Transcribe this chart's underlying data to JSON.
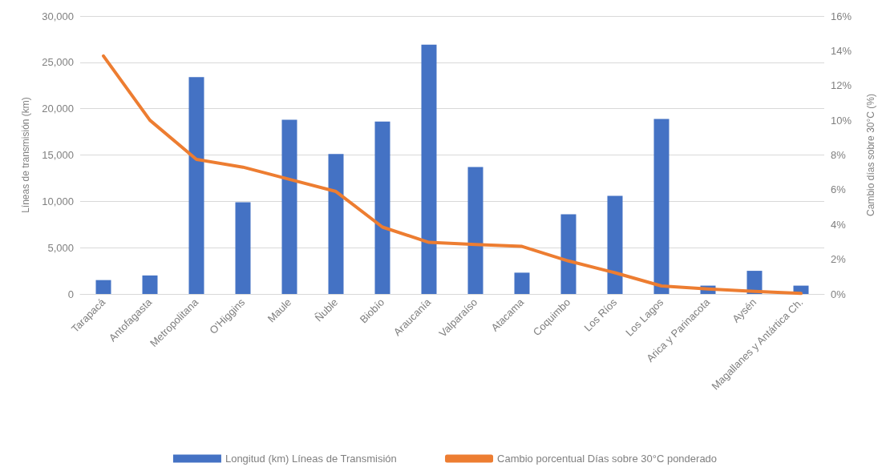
{
  "chart_data": {
    "type": "bar",
    "ylabel": "Líneas de transmisión (km)",
    "y2label": "Cambio días sobre 30°C (%)",
    "categories": [
      "Tarapacá",
      "Antofagasta",
      "Metropolitana",
      "O'Higgins",
      "Maule",
      "Ñuble",
      "Biobío",
      "Araucanía",
      "Valparaíso",
      "Atacama",
      "Coquimbo",
      "Los Ríos",
      "Los Lagos",
      "Arica y Parinacota",
      "Aysén",
      "Magallanes y Antártica Ch."
    ],
    "series": [
      {
        "name": "Longitud (km) Líneas de Transmisión",
        "color": "#4472c4",
        "values": [
          1500,
          2000,
          23400,
          9900,
          18800,
          15100,
          18600,
          26900,
          13700,
          2300,
          8600,
          10600,
          18900,
          900,
          2500,
          900
        ]
      },
      {
        "name": "Cambio porcentual Días sobre 30°C ponderado",
        "type": "line",
        "axis": "y2",
        "color": "#ed7d31",
        "values": [
          13.7,
          10.0,
          7.75,
          7.3,
          6.6,
          5.9,
          3.85,
          2.97,
          2.85,
          2.74,
          1.9,
          1.22,
          0.46,
          0.29,
          0.15,
          0.03
        ]
      }
    ],
    "ylim": [
      0,
      30000
    ],
    "yticks": [
      {
        "value": 0,
        "label": "0"
      },
      {
        "value": 5000,
        "label": "5,000"
      },
      {
        "value": 10000,
        "label": "10,000"
      },
      {
        "value": 15000,
        "label": "15,000"
      },
      {
        "value": 20000,
        "label": "20,000"
      },
      {
        "value": 25000,
        "label": "25,000"
      },
      {
        "value": 30000,
        "label": "30,000"
      }
    ],
    "y2lim": [
      0,
      16
    ],
    "y2ticks": [
      {
        "value": 0,
        "label": "0%"
      },
      {
        "value": 2,
        "label": "2%"
      },
      {
        "value": 4,
        "label": "4%"
      },
      {
        "value": 6,
        "label": "6%"
      },
      {
        "value": 8,
        "label": "8%"
      },
      {
        "value": 10,
        "label": "10%"
      },
      {
        "value": 12,
        "label": "12%"
      },
      {
        "value": 14,
        "label": "14%"
      },
      {
        "value": 16,
        "label": "16%"
      }
    ],
    "grid": "y",
    "legend": "bottom",
    "marker": "none",
    "line_style": "solid"
  }
}
